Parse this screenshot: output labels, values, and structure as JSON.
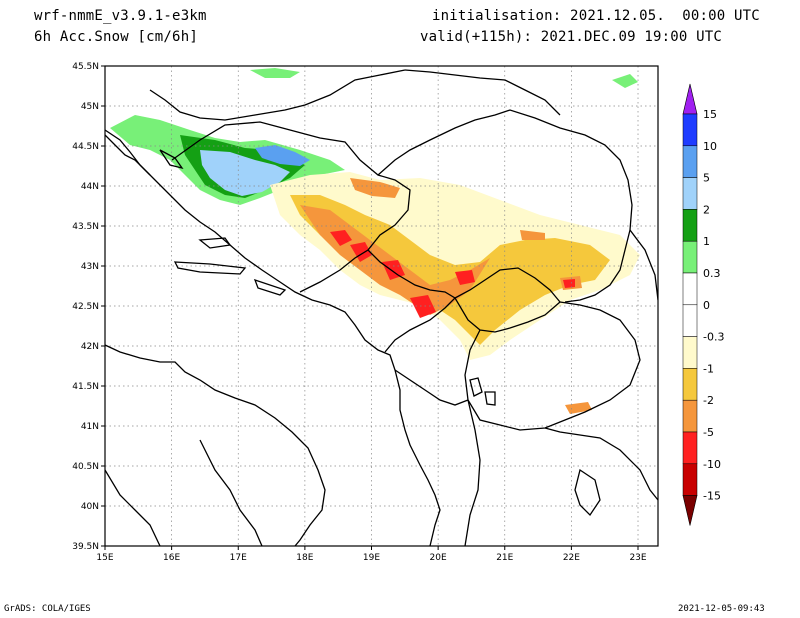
{
  "header": {
    "model": "wrf-nmmE_v3.9.1-e3km",
    "variable": "6h Acc.Snow [cm/6h]",
    "init": "initialisation: 2021.12.05.  00:00 UTC",
    "valid": "valid(+115h): 2021.DEC.09 19:00 UTC"
  },
  "map": {
    "lat_range": [
      39.5,
      45.5
    ],
    "lon_range": [
      15,
      23.3
    ],
    "lat_ticks": [
      "45.5N",
      "45N",
      "44.5N",
      "44N",
      "43.5N",
      "43N",
      "42.5N",
      "42N",
      "41.5N",
      "41N",
      "40.5N",
      "40N",
      "39.5N"
    ],
    "lon_ticks": [
      "15E",
      "16E",
      "17E",
      "18E",
      "19E",
      "20E",
      "21E",
      "22E",
      "23E"
    ],
    "grid": true
  },
  "colorbar": {
    "labels": [
      "15",
      "10",
      "5",
      "2",
      "1",
      "0.3",
      "0",
      "-0.3",
      "-1",
      "-2",
      "-5",
      "-10",
      "-15"
    ],
    "colors": [
      "#1e3cff",
      "#5aa0f0",
      "#a0d2fa",
      "#14a014",
      "#78f078",
      "#ffffff",
      "#ffffff",
      "#fffacc",
      "#f5c83c",
      "#f5963c",
      "#ff2020",
      "#c80000",
      "#8b0000"
    ],
    "top_arrow_color": "#a020f0",
    "bottom_arrow_color": "#7a0000"
  },
  "footer": {
    "left": "GrADS: COLA/IGES",
    "right": "2021-12-05-09:43"
  }
}
